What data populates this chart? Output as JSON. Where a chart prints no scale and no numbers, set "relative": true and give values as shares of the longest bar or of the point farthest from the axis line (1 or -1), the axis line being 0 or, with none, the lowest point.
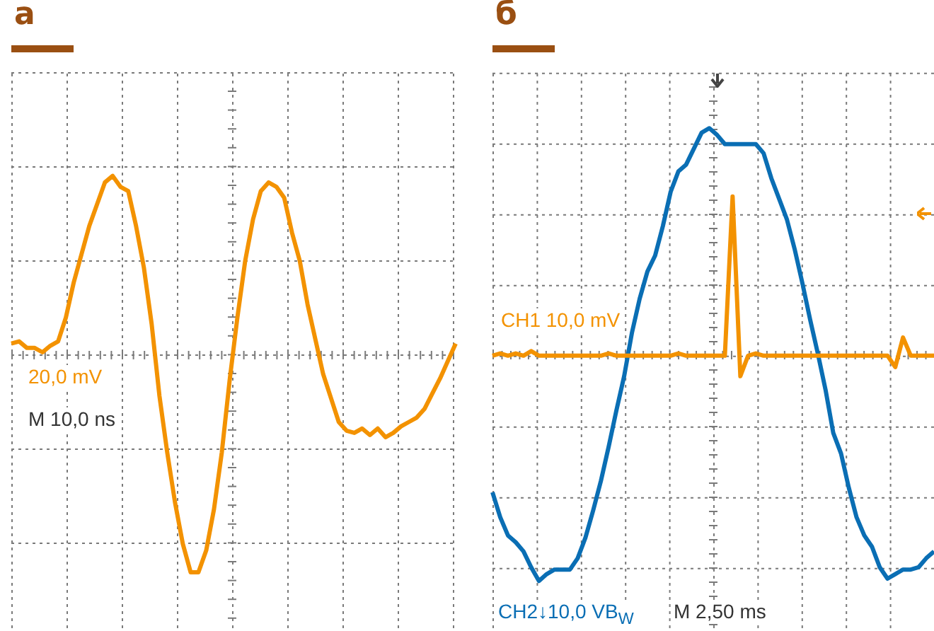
{
  "chart_data": [
    {
      "type": "line",
      "title": "а",
      "relative": true,
      "grid": true,
      "marker": "none",
      "legend": false,
      "categories": [
        null,
        null,
        null,
        null,
        null,
        null,
        null,
        null,
        null,
        null,
        null,
        null,
        null,
        null,
        null,
        null,
        null,
        null,
        null,
        null,
        null,
        null,
        null,
        null,
        null,
        null,
        null,
        null,
        null,
        null,
        null,
        null,
        null,
        null,
        null,
        null,
        null,
        null,
        null,
        null,
        null,
        null,
        null,
        null,
        null,
        null,
        null,
        null,
        null,
        null,
        null,
        null,
        null,
        null,
        null,
        null,
        null,
        null
      ],
      "series": [
        {
          "color": "#f39200",
          "values": [
            0.05,
            0.06,
            0.03,
            0.03,
            0.01,
            0.04,
            0.06,
            0.17,
            0.33,
            0.46,
            0.59,
            0.69,
            0.79,
            0.82,
            0.77,
            0.75,
            0.59,
            0.4,
            0.14,
            -0.19,
            -0.45,
            -0.68,
            -0.87,
            -1,
            -1,
            -0.9,
            -0.71,
            -0.45,
            -0.12,
            0.17,
            0.43,
            0.62,
            0.75,
            0.79,
            0.77,
            0.72,
            0.56,
            0.43,
            0.23,
            0.07,
            -0.09,
            -0.2,
            -0.31,
            -0.35,
            -0.36,
            -0.34,
            -0.37,
            -0.34,
            -0.38,
            -0.36,
            -0.33,
            -0.31,
            -0.29,
            -0.25,
            -0.18,
            -0.11,
            -0.03,
            0.05
          ]
        }
      ],
      "annotations": [
        "20,0 mV",
        "M 10,0 ns"
      ]
    },
    {
      "type": "line",
      "title": "б",
      "relative": true,
      "grid": true,
      "marker": "none",
      "legend": false,
      "categories": [
        null,
        null,
        null,
        null,
        null,
        null,
        null,
        null,
        null,
        null,
        null,
        null,
        null,
        null,
        null,
        null,
        null,
        null,
        null,
        null,
        null,
        null,
        null,
        null,
        null,
        null,
        null,
        null,
        null,
        null,
        null,
        null,
        null,
        null,
        null,
        null,
        null,
        null,
        null,
        null,
        null,
        null,
        null,
        null,
        null,
        null,
        null,
        null,
        null,
        null,
        null,
        null,
        null,
        null,
        null,
        null,
        null,
        null
      ],
      "series": [
        {
          "color": "#f39200",
          "values": [
            0,
            0.01,
            0,
            0.01,
            0,
            0.02,
            0,
            0,
            0,
            0,
            0,
            0,
            0,
            0,
            0,
            0.01,
            0,
            0,
            0,
            0,
            0,
            0,
            0,
            0,
            0.01,
            0,
            0,
            0,
            0,
            0,
            0,
            0.7,
            -0.09,
            0,
            0.01,
            0,
            0,
            0,
            0,
            0,
            0,
            0,
            0,
            0,
            0,
            0,
            0,
            0,
            0,
            0,
            0,
            0,
            -0.05,
            0.08,
            0,
            0,
            0,
            0
          ]
        },
        {
          "color": "#0a6eb4",
          "values": [
            -0.6,
            -0.71,
            -0.79,
            -0.82,
            -0.86,
            -0.93,
            -0.99,
            -0.96,
            -0.94,
            -0.94,
            -0.94,
            -0.89,
            -0.8,
            -0.68,
            -0.55,
            -0.4,
            -0.24,
            -0.09,
            0.1,
            0.25,
            0.37,
            0.44,
            0.57,
            0.72,
            0.81,
            0.84,
            0.91,
            0.98,
            1,
            0.97,
            0.93,
            0.93,
            0.93,
            0.93,
            0.93,
            0.89,
            0.78,
            0.69,
            0.6,
            0.47,
            0.32,
            0.16,
            0.01,
            -0.15,
            -0.34,
            -0.43,
            -0.58,
            -0.71,
            -0.79,
            -0.84,
            -0.93,
            -0.98,
            -0.96,
            -0.94,
            -0.94,
            -0.93,
            -0.89,
            -0.86
          ]
        }
      ],
      "annotations": [
        "CH1 10,0 mV",
        "CH2↓10,0 VB$_{W}$",
        "M 2,50 ms"
      ]
    }
  ]
}
